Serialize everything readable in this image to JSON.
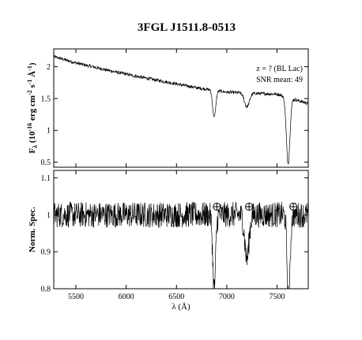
{
  "chart_data": [
    {
      "type": "line",
      "panel": "top",
      "title": "3FGL J1511.8-0513",
      "ylabel_parts": [
        "F",
        "λ",
        " (10",
        "-16",
        " erg cm",
        "-2",
        " s",
        "-1",
        " Å",
        "-1",
        ")"
      ],
      "xlim": [
        5280,
        7810
      ],
      "ylim": [
        0.42,
        2.28
      ],
      "yticks": [
        0.5,
        1,
        1.5,
        2
      ],
      "ytick_labels": [
        "0.5",
        "1",
        "1.5",
        "2"
      ],
      "grid": false,
      "annotations": [
        "z = ? (BL Lac)",
        "SNR mean: 49"
      ],
      "series": [
        {
          "continuum": [
            [
              5280,
              2.16
            ],
            [
              5500,
              2.06
            ],
            [
              5800,
              1.95
            ],
            [
              6100,
              1.85
            ],
            [
              6400,
              1.76
            ],
            [
              6700,
              1.67
            ],
            [
              7000,
              1.6
            ],
            [
              7300,
              1.58
            ],
            [
              7500,
              1.57
            ],
            [
              7810,
              1.42
            ]
          ],
          "features": [
            {
              "center": 6875,
              "width": 22,
              "depth": 0.38
            },
            {
              "center": 7200,
              "width": 35,
              "depth": 0.2
            },
            {
              "center": 7610,
              "width": 25,
              "depth": 1.0
            }
          ]
        }
      ]
    },
    {
      "type": "line",
      "panel": "bottom",
      "xlabel": "λ (Å)",
      "ylabel": "Norm. Spec.",
      "xlim": [
        5280,
        7810
      ],
      "ylim": [
        0.8,
        1.12
      ],
      "xticks": [
        5500,
        6000,
        6500,
        7000,
        7500
      ],
      "xtick_labels": [
        "5500",
        "6000",
        "6500",
        "7000",
        "7500"
      ],
      "yticks": [
        0.8,
        0.9,
        1,
        1.1
      ],
      "ytick_labels": [
        "0.8",
        "0.9",
        "1",
        "1.1"
      ],
      "grid": false,
      "telluric_markers_x": [
        6870,
        7190,
        7630
      ],
      "series": [
        {
          "level": 1.0,
          "features": [
            {
              "center": 6875,
              "width": 20,
              "depth": 0.2
            },
            {
              "center": 7200,
              "width": 30,
              "depth": 0.12
            },
            {
              "center": 7615,
              "width": 20,
              "depth": 0.25
            }
          ]
        }
      ]
    }
  ]
}
